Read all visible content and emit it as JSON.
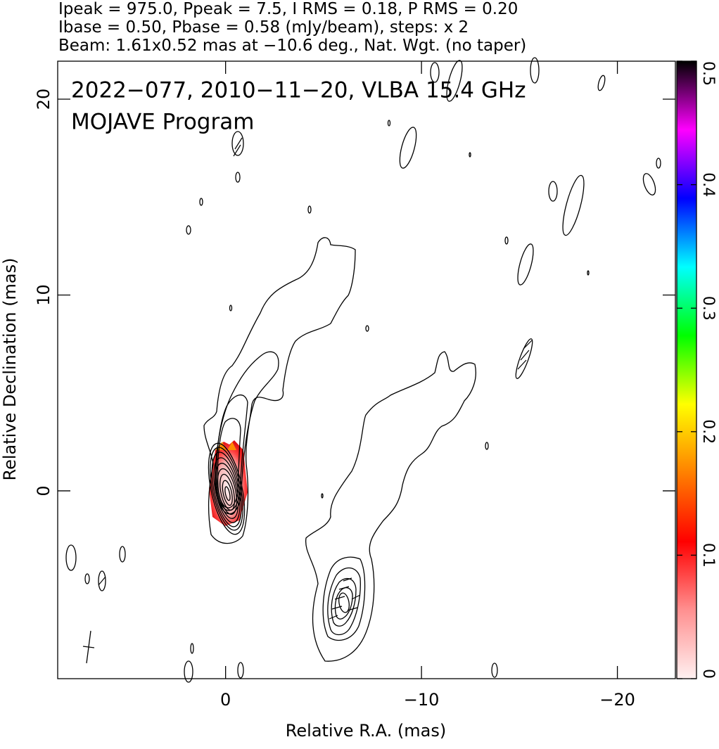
{
  "chart_data": {
    "type": "contour",
    "header": [
      "Ipeak = 975.0, Ppeak = 7.5, I RMS = 0.18, P RMS = 0.20",
      "Ibase = 0.50, Pbase = 0.58 (mJy/beam), steps: x 2",
      "Beam: 1.61x0.52 mas at −10.6 deg., Nat. Wgt. (no taper)"
    ],
    "title": "2022−077, 2010−11−20, VLBA 15.4 GHz",
    "subtitle": "MOJAVE Program",
    "xlabel": "Relative R.A. (mas)",
    "ylabel": "Relative Declination (mas)",
    "xlim": [
      8.57,
      -22.96
    ],
    "ylim": [
      -9.59,
      21.94
    ],
    "xticks": [
      {
        "value": 0,
        "label": "0"
      },
      {
        "value": -10,
        "label": "−10"
      },
      {
        "value": -20,
        "label": "−20"
      }
    ],
    "yticks": [
      0,
      10,
      20
    ],
    "colorbar": {
      "clim": [
        0,
        0.5
      ],
      "ticks": [
        0,
        0.1,
        0.2,
        0.3,
        0.4,
        0.5
      ],
      "colors": [
        "#fff0f0",
        "#ff9090",
        "#ff0000",
        "#ff8000",
        "#ffff00",
        "#00ff00",
        "#00ffff",
        "#0000ff",
        "#ff00ff",
        "#000000"
      ]
    }
  }
}
